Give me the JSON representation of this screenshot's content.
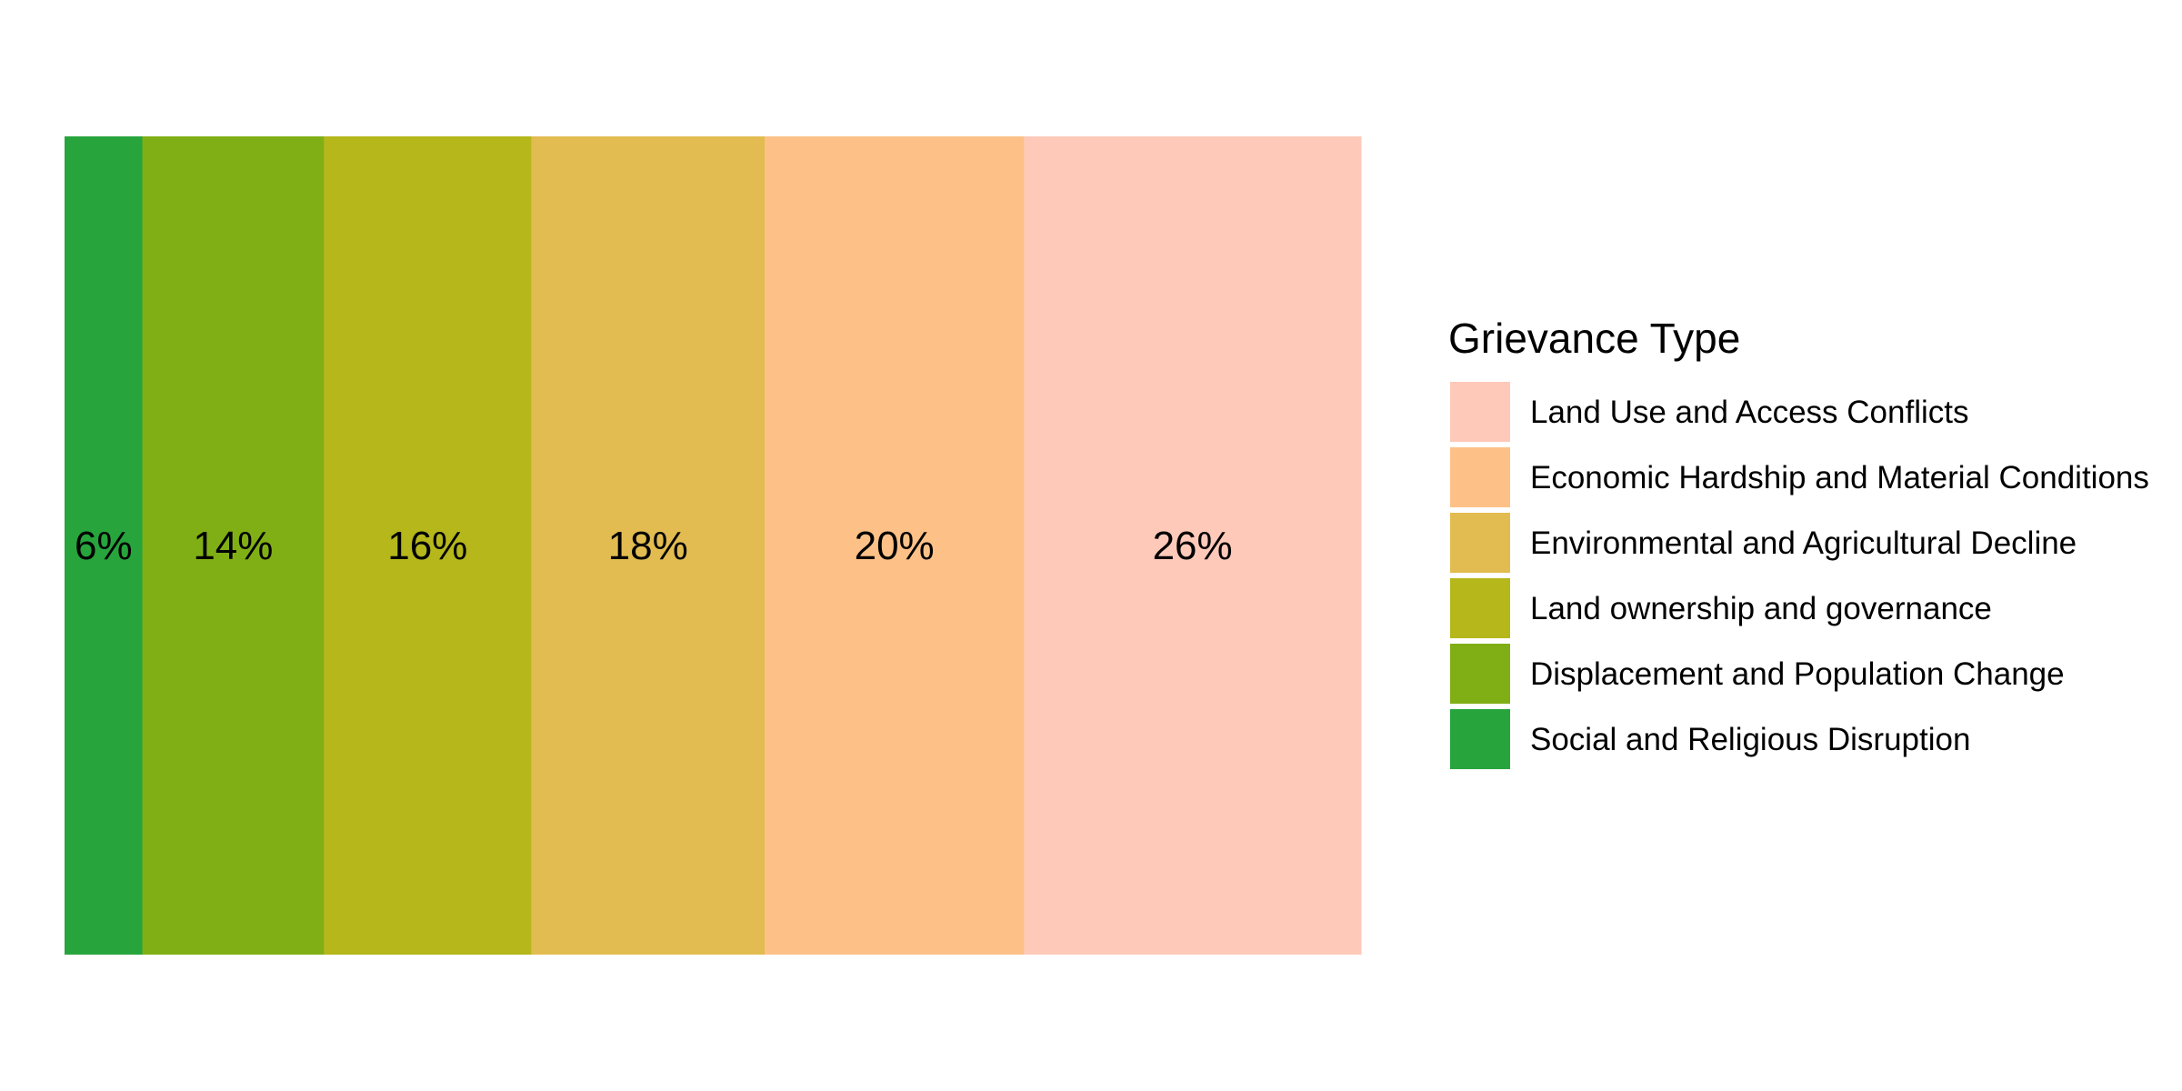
{
  "chart_data": {
    "type": "bar",
    "orientation": "horizontal-stacked-100",
    "title": "",
    "xlabel": "",
    "ylabel": "",
    "grid": false,
    "legend_placement": "right",
    "legend_title": "Grievance Type",
    "label_format": "percent",
    "series": [
      {
        "name": "Social and Religious Disruption",
        "value": 6,
        "color": "#27A43C"
      },
      {
        "name": "Displacement and Population Change",
        "value": 14,
        "color": "#80AF15"
      },
      {
        "name": "Land ownership and governance",
        "value": 16,
        "color": "#B5B71B"
      },
      {
        "name": "Environmental and Agricultural Decline",
        "value": 18,
        "color": "#E2BC50"
      },
      {
        "name": "Economic Hardship and Material Conditions",
        "value": 20,
        "color": "#FDC187"
      },
      {
        "name": "Land Use and Access Conflicts",
        "value": 26,
        "color": "#FEC9B9"
      }
    ],
    "legend_order": [
      "Land Use and Access Conflicts",
      "Economic Hardship and Material Conditions",
      "Environmental and Agricultural Decline",
      "Land ownership and governance",
      "Displacement and Population Change",
      "Social and Religious Disruption"
    ]
  }
}
